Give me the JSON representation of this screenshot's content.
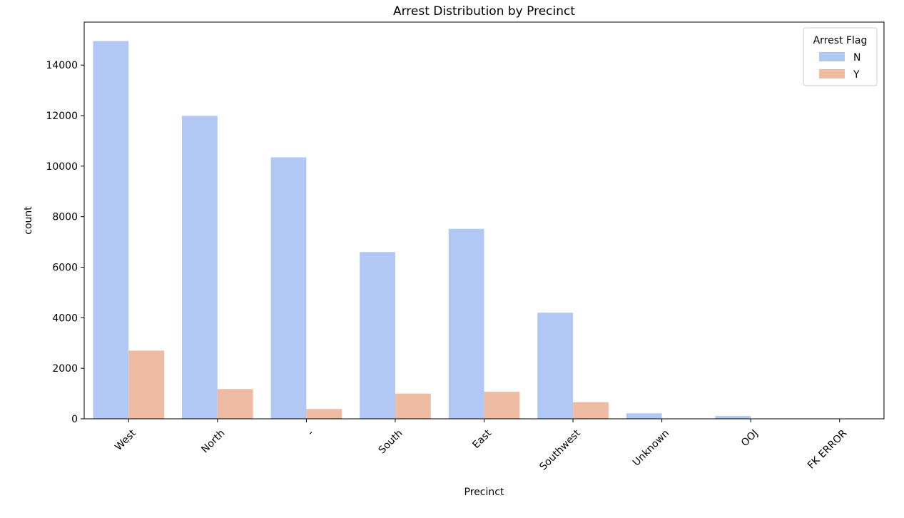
{
  "chart_data": {
    "type": "bar",
    "title": "Arrest Distribution by Precinct",
    "xlabel": "Precinct",
    "ylabel": "count",
    "categories": [
      "West",
      "North",
      "-",
      "South",
      "East",
      "Southwest",
      "Unknown",
      "OOJ",
      "FK ERROR"
    ],
    "series": [
      {
        "name": "N",
        "color": "#b2c8f4",
        "values": [
          14950,
          11990,
          10350,
          6600,
          7520,
          4200,
          220,
          110,
          5
        ]
      },
      {
        "name": "Y",
        "color": "#eebca3",
        "values": [
          2700,
          1180,
          390,
          1000,
          1070,
          660,
          0,
          0,
          0
        ]
      }
    ],
    "yticks": [
      0,
      2000,
      4000,
      6000,
      8000,
      10000,
      12000,
      14000
    ],
    "ylim": [
      0,
      15700
    ],
    "grid": false,
    "legend": {
      "title": "Arrest Flag",
      "position": "top-right"
    }
  }
}
